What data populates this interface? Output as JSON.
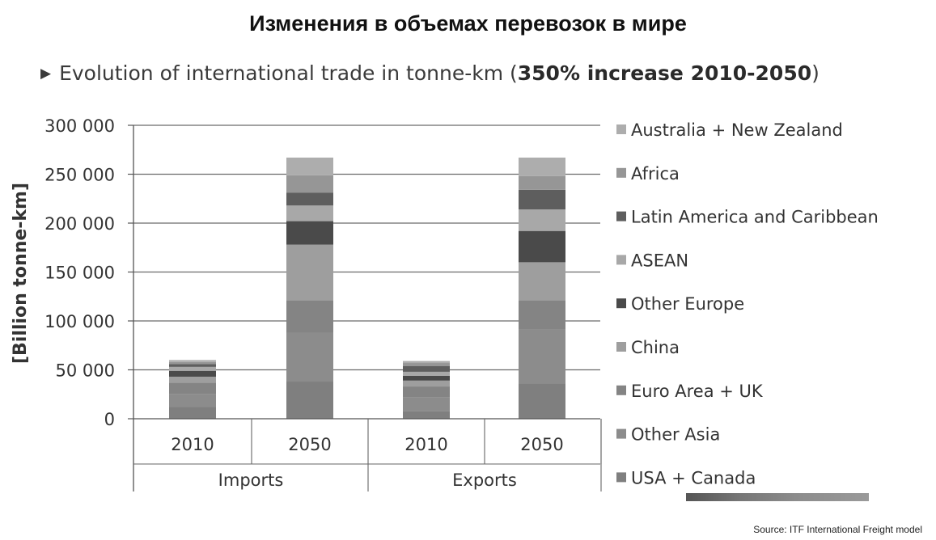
{
  "header": {
    "title": "Изменения в объемах перевозок в мире",
    "subtitle_prefix": "Evolution of international trade in tonne-km (",
    "subtitle_bold": "350% increase 2010-2050",
    "subtitle_suffix": ")",
    "source": "Source: ITF International Freight model"
  },
  "chart_data": {
    "type": "bar",
    "stacked": true,
    "ylabel": "[Billion tonne-km]",
    "xlabel": "",
    "ylim": [
      0,
      300000
    ],
    "yticks": [
      0,
      50000,
      100000,
      150000,
      200000,
      250000,
      300000
    ],
    "ytick_labels": [
      "0",
      "50 000",
      "100 000",
      "150 000",
      "200 000",
      "250 000",
      "300 000"
    ],
    "groups": [
      "Imports",
      "Exports"
    ],
    "categories": [
      "2010",
      "2050",
      "2010",
      "2050"
    ],
    "legend_position": "right",
    "grid": true,
    "series": [
      {
        "name": "USA + Canada",
        "color": "#7f7f7f",
        "values": [
          12000,
          38000,
          8000,
          36000
        ]
      },
      {
        "name": "Other Asia",
        "color": "#8c8c8c",
        "values": [
          13000,
          50000,
          14000,
          55000
        ]
      },
      {
        "name": "Euro Area + UK",
        "color": "#848484",
        "values": [
          12000,
          33000,
          11000,
          30000
        ]
      },
      {
        "name": "China",
        "color": "#9e9e9e",
        "values": [
          6000,
          57000,
          6000,
          39000
        ]
      },
      {
        "name": "Other Europe",
        "color": "#4a4a4a",
        "values": [
          6000,
          24000,
          5000,
          32000
        ]
      },
      {
        "name": "ASEAN",
        "color": "#a8a8a8",
        "values": [
          4000,
          16000,
          4000,
          22000
        ]
      },
      {
        "name": "Latin America and Caribbean",
        "color": "#5e5e5e",
        "values": [
          3000,
          13000,
          6000,
          20000
        ]
      },
      {
        "name": "Africa",
        "color": "#969696",
        "values": [
          2000,
          18000,
          3000,
          14000
        ]
      },
      {
        "name": "Australia + New Zealand",
        "color": "#adadad",
        "values": [
          2000,
          18000,
          2000,
          19000
        ]
      }
    ]
  }
}
